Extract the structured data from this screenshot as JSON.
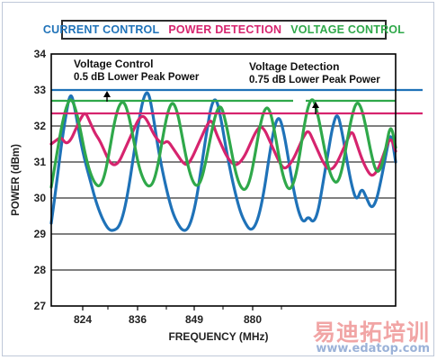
{
  "chart_data": {
    "type": "line",
    "title": "",
    "xlabel": "FREQUENCY (MHz)",
    "ylabel": "POWER (dBm)",
    "ylim": [
      27,
      34
    ],
    "yticks": [
      27,
      28,
      29,
      30,
      31,
      32,
      33,
      34
    ],
    "xtick_labels": [
      "824",
      "836",
      "849",
      "880"
    ],
    "grid": "horizontal",
    "legend": {
      "placement": "top",
      "entries": [
        {
          "label": "CURRENT CONTROL",
          "color": "#1f72b8"
        },
        {
          "label": "POWER DETECTION",
          "color": "#d6246e"
        },
        {
          "label": "VOLTAGE CONTROL",
          "color": "#2fa84a"
        }
      ]
    },
    "series": [
      {
        "name": "CURRENT CONTROL",
        "color": "#1f72b8",
        "values": [
          29.3,
          30.3,
          31.4,
          32.3,
          33.0,
          32.4,
          31.6,
          31.0,
          30.5,
          30.0,
          29.6,
          29.3,
          29.1,
          29.1,
          29.2,
          29.6,
          30.3,
          31.2,
          32.1,
          32.8,
          33.0,
          32.3,
          31.4,
          30.7,
          30.1,
          29.6,
          29.3,
          29.1,
          29.1,
          29.4,
          30.0,
          30.9,
          31.8,
          32.6,
          32.8,
          32.2,
          31.4,
          30.7,
          30.1,
          29.6,
          29.3,
          29.1,
          29.2,
          29.6,
          30.3,
          31.2,
          32.0,
          32.3,
          31.8,
          31.0,
          30.2,
          29.6,
          29.3,
          29.5,
          29.3,
          29.6,
          30.4,
          31.2,
          32.0,
          32.4,
          31.8,
          31.0,
          30.3,
          29.9,
          30.3,
          30.0,
          29.7,
          29.9,
          30.5,
          31.2,
          31.9,
          31.0
        ]
      },
      {
        "name": "POWER DETECTION",
        "color": "#d6246e",
        "values": [
          31.5,
          31.6,
          31.7,
          31.5,
          31.6,
          31.9,
          32.2,
          32.4,
          32.1,
          31.8,
          31.6,
          31.3,
          31.0,
          30.9,
          31.0,
          31.3,
          31.6,
          31.9,
          32.2,
          32.3,
          32.1,
          31.8,
          31.6,
          31.5,
          31.6,
          31.4,
          31.2,
          31.0,
          30.9,
          31.1,
          31.4,
          31.7,
          32.0,
          32.2,
          31.8,
          31.5,
          31.2,
          31.0,
          30.9,
          31.0,
          31.2,
          31.5,
          31.8,
          32.0,
          31.9,
          31.6,
          31.3,
          31.0,
          30.8,
          30.9,
          31.1,
          31.4,
          31.7,
          31.9,
          31.6,
          31.3,
          31.0,
          30.8,
          30.8,
          31.0,
          31.3,
          31.6,
          31.9,
          31.5,
          31.1,
          30.8,
          30.6,
          30.7,
          31.0,
          31.4,
          31.7,
          31.3
        ]
      },
      {
        "name": "VOLTAGE CONTROL",
        "color": "#2fa84a",
        "values": [
          30.3,
          31.1,
          31.9,
          32.5,
          32.8,
          32.5,
          31.9,
          31.2,
          30.7,
          30.4,
          30.3,
          30.6,
          31.3,
          32.1,
          32.6,
          32.7,
          32.3,
          31.6,
          30.9,
          30.5,
          30.3,
          30.4,
          30.9,
          31.7,
          32.4,
          32.7,
          32.4,
          31.7,
          31.0,
          30.5,
          30.3,
          30.5,
          31.1,
          31.8,
          32.4,
          32.6,
          32.1,
          31.4,
          30.7,
          30.3,
          30.2,
          30.5,
          31.2,
          32.0,
          32.5,
          32.5,
          31.9,
          31.1,
          30.5,
          30.2,
          30.4,
          31.0,
          31.9,
          32.6,
          32.8,
          32.3,
          31.6,
          30.9,
          30.5,
          30.4,
          30.8,
          31.6,
          32.3,
          32.7,
          32.5,
          31.9,
          31.2,
          30.7,
          30.8,
          31.4,
          32.1,
          31.4
        ]
      }
    ],
    "reference_lines": [
      {
        "name": "current-control-peak",
        "y": 33.0,
        "color": "#1f72b8"
      },
      {
        "name": "voltage-control-peak",
        "y": 32.7,
        "color": "#2fa84a"
      },
      {
        "name": "power-detection-peak",
        "y": 32.35,
        "color": "#d6246e"
      }
    ],
    "annotations": [
      {
        "id": "voltage-control-note",
        "lines": [
          "Voltage Control",
          "0.5 dB Lower Peak Power"
        ]
      },
      {
        "id": "voltage-detection-note",
        "lines": [
          "Voltage Detection",
          "0.75 dB Lower Peak Power"
        ]
      }
    ]
  },
  "watermark": {
    "title": "易迪拓培训",
    "url": "www.edatop.com"
  }
}
